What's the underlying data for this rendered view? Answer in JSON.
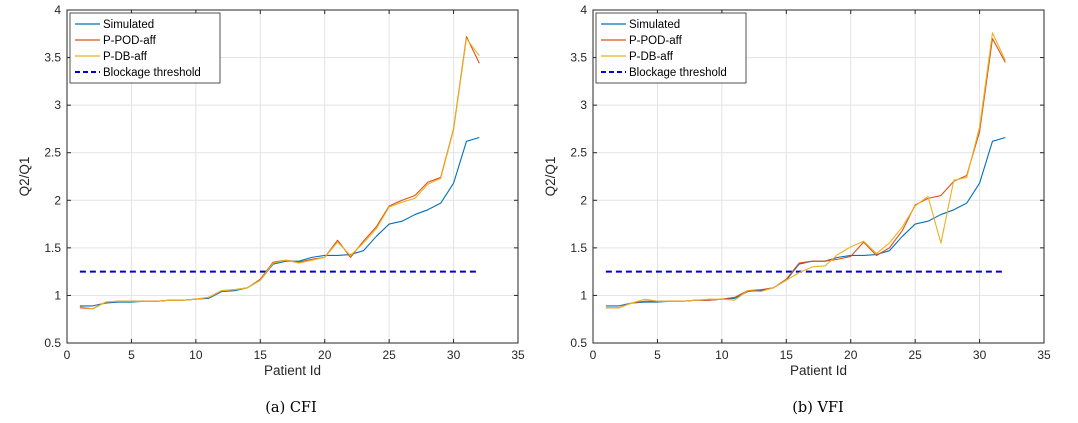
{
  "chart_data": [
    {
      "type": "line",
      "caption": "(a) CFI",
      "xlabel": "Patient Id",
      "ylabel": "Q2/Q1",
      "xlim": [
        0,
        35
      ],
      "ylim": [
        0.5,
        4
      ],
      "xticks": [
        "0",
        "5",
        "10",
        "15",
        "20",
        "25",
        "30",
        "35"
      ],
      "yticks": [
        "0.5",
        "1",
        "1.5",
        "2",
        "2.5",
        "3",
        "3.5",
        "4"
      ],
      "grid": true,
      "legend": "top-left",
      "x": [
        1,
        2,
        3,
        4,
        5,
        6,
        7,
        8,
        9,
        10,
        11,
        12,
        13,
        14,
        15,
        16,
        17,
        18,
        19,
        20,
        21,
        22,
        23,
        24,
        25,
        26,
        27,
        28,
        29,
        30,
        31,
        32
      ],
      "series": [
        {
          "name": "Simulated",
          "color": "#0072BD",
          "style": "solid",
          "values": [
            0.89,
            0.89,
            0.92,
            0.93,
            0.93,
            0.94,
            0.94,
            0.95,
            0.95,
            0.96,
            0.97,
            1.04,
            1.05,
            1.08,
            1.16,
            1.33,
            1.36,
            1.36,
            1.4,
            1.42,
            1.42,
            1.43,
            1.47,
            1.62,
            1.75,
            1.78,
            1.85,
            1.9,
            1.97,
            2.18,
            2.62,
            2.66
          ]
        },
        {
          "name": "P-POD-aff",
          "color": "#D95319",
          "style": "solid",
          "values": [
            0.87,
            0.86,
            0.93,
            0.94,
            0.94,
            0.94,
            0.94,
            0.95,
            0.95,
            0.96,
            0.98,
            1.05,
            1.06,
            1.08,
            1.17,
            1.35,
            1.37,
            1.35,
            1.38,
            1.4,
            1.58,
            1.4,
            1.57,
            1.72,
            1.94,
            2.0,
            2.05,
            2.19,
            2.24,
            2.75,
            3.72,
            3.44
          ]
        },
        {
          "name": "P-DB-aff",
          "color": "#EDB120",
          "style": "solid",
          "values": [
            0.88,
            0.86,
            0.93,
            0.94,
            0.94,
            0.94,
            0.94,
            0.95,
            0.95,
            0.96,
            0.98,
            1.05,
            1.06,
            1.08,
            1.16,
            1.34,
            1.37,
            1.34,
            1.37,
            1.4,
            1.56,
            1.42,
            1.55,
            1.7,
            1.93,
            1.98,
            2.02,
            2.17,
            2.23,
            2.74,
            3.7,
            3.52
          ]
        },
        {
          "name": "Blockage threshold",
          "color": "#0000CC",
          "style": "dashed",
          "values": [
            1.25,
            1.25,
            1.25,
            1.25,
            1.25,
            1.25,
            1.25,
            1.25,
            1.25,
            1.25,
            1.25,
            1.25,
            1.25,
            1.25,
            1.25,
            1.25,
            1.25,
            1.25,
            1.25,
            1.25,
            1.25,
            1.25,
            1.25,
            1.25,
            1.25,
            1.25,
            1.25,
            1.25,
            1.25,
            1.25,
            1.25,
            1.25
          ]
        }
      ]
    },
    {
      "type": "line",
      "caption": "(b) VFI",
      "xlabel": "Patient Id",
      "ylabel": "Q2/Q1",
      "xlim": [
        0,
        35
      ],
      "ylim": [
        0.5,
        4
      ],
      "xticks": [
        "0",
        "5",
        "10",
        "15",
        "20",
        "25",
        "30",
        "35"
      ],
      "yticks": [
        "0.5",
        "1",
        "1.5",
        "2",
        "2.5",
        "3",
        "3.5",
        "4"
      ],
      "grid": true,
      "legend": "top-left",
      "x": [
        1,
        2,
        3,
        4,
        5,
        6,
        7,
        8,
        9,
        10,
        11,
        12,
        13,
        14,
        15,
        16,
        17,
        18,
        19,
        20,
        21,
        22,
        23,
        24,
        25,
        26,
        27,
        28,
        29,
        30,
        31,
        32
      ],
      "series": [
        {
          "name": "Simulated",
          "color": "#0072BD",
          "style": "solid",
          "values": [
            0.89,
            0.89,
            0.92,
            0.93,
            0.93,
            0.94,
            0.94,
            0.95,
            0.95,
            0.96,
            0.97,
            1.04,
            1.05,
            1.08,
            1.16,
            1.33,
            1.36,
            1.36,
            1.4,
            1.42,
            1.42,
            1.43,
            1.47,
            1.62,
            1.75,
            1.78,
            1.85,
            1.9,
            1.97,
            2.18,
            2.62,
            2.66
          ]
        },
        {
          "name": "P-POD-aff",
          "color": "#D95319",
          "style": "solid",
          "values": [
            0.87,
            0.87,
            0.92,
            0.94,
            0.94,
            0.94,
            0.94,
            0.95,
            0.95,
            0.96,
            0.98,
            1.05,
            1.06,
            1.08,
            1.17,
            1.34,
            1.36,
            1.36,
            1.38,
            1.41,
            1.56,
            1.42,
            1.5,
            1.68,
            1.95,
            2.02,
            2.05,
            2.2,
            2.26,
            2.72,
            3.7,
            3.45
          ]
        },
        {
          "name": "P-DB-aff",
          "color": "#EDB120",
          "style": "solid",
          "values": [
            0.87,
            0.87,
            0.92,
            0.96,
            0.94,
            0.94,
            0.94,
            0.95,
            0.96,
            0.96,
            0.95,
            1.05,
            1.04,
            1.08,
            1.16,
            1.24,
            1.3,
            1.31,
            1.43,
            1.51,
            1.57,
            1.44,
            1.55,
            1.72,
            1.94,
            2.04,
            1.55,
            2.21,
            2.24,
            2.77,
            3.76,
            3.47
          ]
        },
        {
          "name": "Blockage threshold",
          "color": "#0000CC",
          "style": "dashed",
          "values": [
            1.25,
            1.25,
            1.25,
            1.25,
            1.25,
            1.25,
            1.25,
            1.25,
            1.25,
            1.25,
            1.25,
            1.25,
            1.25,
            1.25,
            1.25,
            1.25,
            1.25,
            1.25,
            1.25,
            1.25,
            1.25,
            1.25,
            1.25,
            1.25,
            1.25,
            1.25,
            1.25,
            1.25,
            1.25,
            1.25,
            1.25,
            1.25
          ]
        }
      ]
    }
  ]
}
